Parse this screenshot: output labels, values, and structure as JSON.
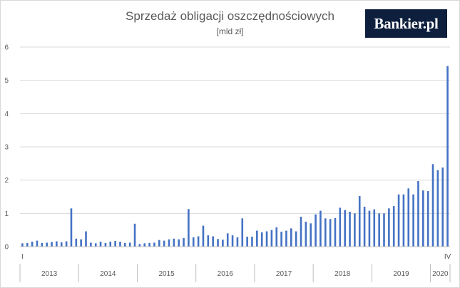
{
  "chart_data": {
    "type": "bar",
    "title": "Sprzedaż obligacji oszczędnościowych",
    "subtitle": "[mld zł]",
    "xlabel": "",
    "ylabel": "",
    "ylim": [
      0,
      6
    ],
    "yticks": [
      "0",
      "1",
      "2",
      "3",
      "4",
      "5",
      "6"
    ],
    "grid": true,
    "legend": "none",
    "bar_color": "#4472c4",
    "first_month_label": "I",
    "last_month_label": "IV",
    "years": [
      "2013",
      "2014",
      "2015",
      "2016",
      "2017",
      "2018",
      "2019",
      "2020"
    ],
    "values": [
      0.1,
      0.11,
      0.15,
      0.18,
      0.11,
      0.12,
      0.14,
      0.16,
      0.13,
      0.16,
      1.15,
      0.24,
      0.22,
      0.46,
      0.12,
      0.1,
      0.15,
      0.11,
      0.15,
      0.17,
      0.15,
      0.11,
      0.12,
      0.69,
      0.08,
      0.1,
      0.11,
      0.12,
      0.2,
      0.18,
      0.22,
      0.24,
      0.22,
      0.26,
      1.13,
      0.28,
      0.31,
      0.63,
      0.34,
      0.31,
      0.23,
      0.21,
      0.4,
      0.34,
      0.28,
      0.85,
      0.3,
      0.3,
      0.48,
      0.43,
      0.46,
      0.5,
      0.58,
      0.45,
      0.48,
      0.55,
      0.46,
      0.9,
      0.75,
      0.7,
      0.97,
      1.08,
      0.85,
      0.83,
      0.86,
      1.17,
      1.1,
      1.05,
      1.0,
      1.52,
      1.2,
      1.08,
      1.12,
      1.0,
      1.0,
      1.15,
      1.22,
      1.57,
      1.57,
      1.75,
      1.57,
      1.97,
      1.69,
      1.67,
      2.48,
      2.3,
      2.38,
      5.43
    ]
  },
  "logo": {
    "name": "Bankier.pl"
  }
}
